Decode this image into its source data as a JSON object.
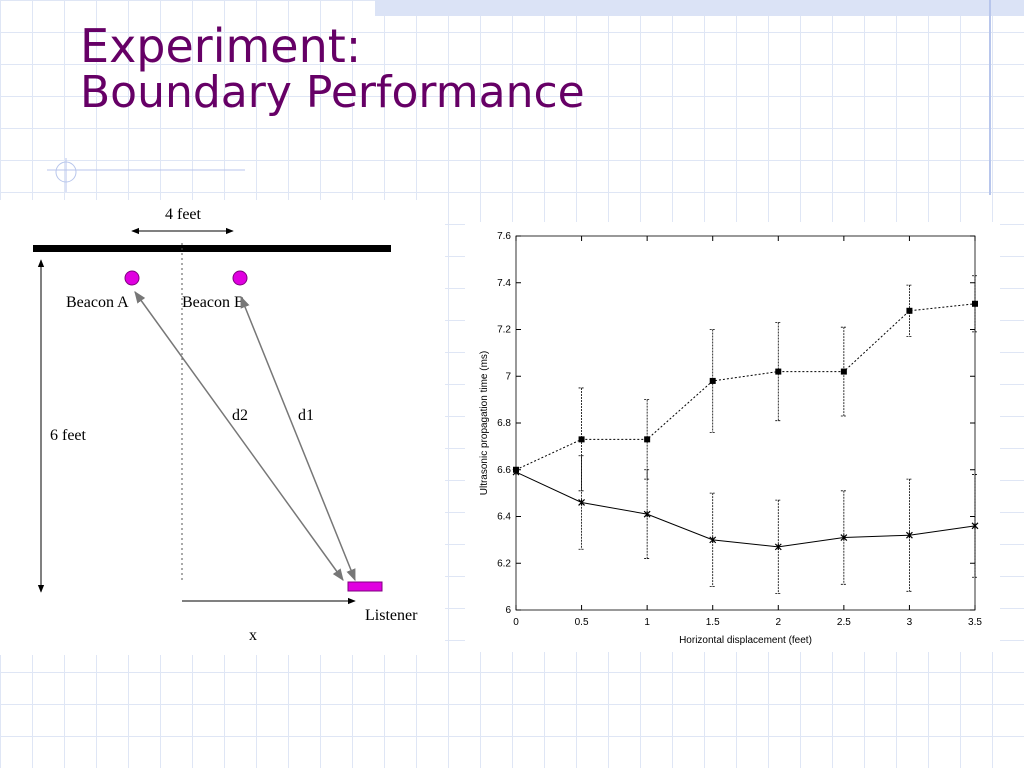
{
  "header": {
    "title": "Experiment:",
    "subtitle": "Boundary Performance"
  },
  "diagram": {
    "width_label": "4 feet",
    "beacon_a": "Beacon A",
    "beacon_b": "Beacon B",
    "height_label": "6 feet",
    "d2": "d2",
    "d1": "d1",
    "listener": "Listener",
    "x": "x"
  },
  "chart_data": {
    "type": "line",
    "xlabel": "Horizontal displacement (feet)",
    "ylabel": "Ultrasonic propagation time (ms)",
    "x": [
      0,
      0.5,
      1,
      1.5,
      2,
      2.5,
      3,
      3.5
    ],
    "xlim": [
      0,
      3.5
    ],
    "xticks": [
      0,
      0.5,
      1,
      1.5,
      2,
      2.5,
      3,
      3.5
    ],
    "ylim": [
      6,
      7.6
    ],
    "yticks": [
      6,
      6.2,
      6.4,
      6.6,
      6.8,
      7,
      7.2,
      7.4,
      7.6
    ],
    "series": [
      {
        "color": "#000000",
        "marker": "square",
        "dash": "dotted",
        "values": [
          6.6,
          6.73,
          6.73,
          6.98,
          7.02,
          7.02,
          7.28,
          7.31
        ],
        "errors": [
          null,
          0.22,
          0.17,
          0.22,
          0.21,
          0.19,
          0.11,
          0.12
        ]
      },
      {
        "color": "#000000",
        "marker": "star",
        "dash": "solid",
        "values": [
          6.59,
          6.46,
          6.41,
          6.3,
          6.27,
          6.31,
          6.32,
          6.36
        ],
        "errors": [
          null,
          0.2,
          0.19,
          0.2,
          0.2,
          0.2,
          0.24,
          0.22
        ]
      }
    ]
  }
}
